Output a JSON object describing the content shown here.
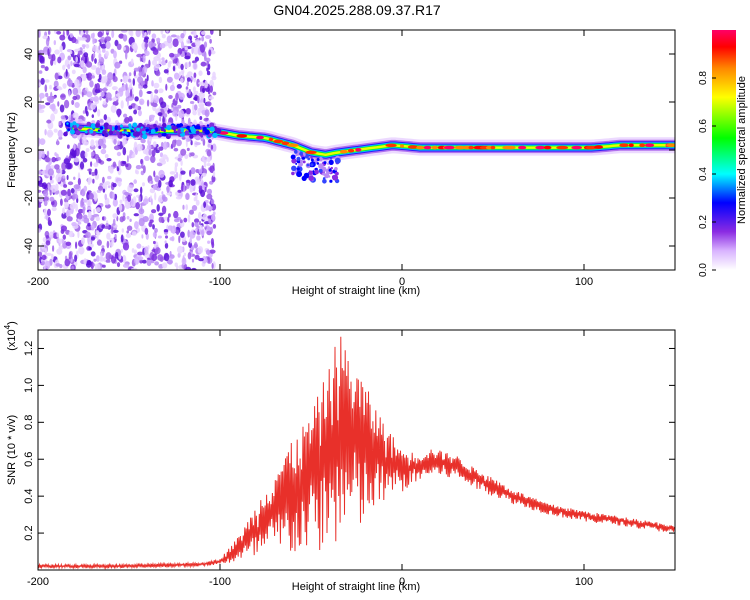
{
  "title": "GN04.2025.288.09.37.R17",
  "chart_data": [
    {
      "type": "heatmap",
      "title": "GN04.2025.288.09.37.R17",
      "xlabel": "Height of straight line (km)",
      "ylabel": "Frequency (Hz)",
      "xlim": [
        -200,
        150
      ],
      "ylim": [
        -50,
        50
      ],
      "xticks": [
        -200,
        -100,
        0,
        100
      ],
      "yticks": [
        -40,
        -20,
        0,
        20,
        40
      ],
      "ridge": {
        "x": [
          -180,
          -160,
          -140,
          -120,
          -105,
          -90,
          -75,
          -60,
          -50,
          -42,
          -35,
          -25,
          -15,
          -5,
          10,
          30,
          60,
          90,
          105,
          120,
          140,
          150
        ],
        "freq": [
          9,
          8,
          8,
          8,
          8,
          6,
          5,
          2,
          -1,
          -2,
          -1,
          0,
          1,
          2,
          1,
          1,
          1,
          1,
          1,
          2,
          2,
          2
        ]
      },
      "noise_region_x": [
        -200,
        -103
      ],
      "colorbar": {
        "label": "Normalized spectral amplitude",
        "range": [
          0,
          1
        ],
        "ticks": [
          0.0,
          0.2,
          0.4,
          0.6,
          0.8
        ],
        "tick_labels": [
          "0.0",
          "0.2",
          "0.4",
          "0.6",
          "0.8"
        ],
        "colors": [
          "#ffffff",
          "#d9b3ff",
          "#8a2be2",
          "#0000ff",
          "#00ffff",
          "#00ff00",
          "#ffff00",
          "#ff8800",
          "#ff0000",
          "#ff0066"
        ]
      }
    },
    {
      "type": "line",
      "xlabel": "Height of straight line (km)",
      "ylabel": "SNR (10 * v/v)",
      "y_multiplier": "(x10",
      "y_multiplier_exp": "4",
      "y_multiplier_close": ")",
      "xlim": [
        -200,
        150
      ],
      "ylim": [
        0,
        1.3
      ],
      "xticks": [
        -200,
        -100,
        0,
        100
      ],
      "yticks": [
        0.2,
        0.4,
        0.6,
        0.8,
        1.0,
        1.2
      ],
      "ytick_labels": [
        "0.2",
        "0.4",
        "0.6",
        "0.8",
        "1.0",
        "1.2"
      ],
      "color": "#e8302a",
      "envelope": {
        "x": [
          -200,
          -150,
          -110,
          -100,
          -90,
          -80,
          -70,
          -60,
          -50,
          -40,
          -35,
          -30,
          -20,
          -10,
          0,
          10,
          15,
          20,
          30,
          40,
          50,
          60,
          80,
          100,
          120,
          140,
          150
        ],
        "upper": [
          0.03,
          0.03,
          0.04,
          0.06,
          0.18,
          0.35,
          0.55,
          0.7,
          0.85,
          1.1,
          1.3,
          1.2,
          1.0,
          0.8,
          0.65,
          0.63,
          0.66,
          0.65,
          0.62,
          0.55,
          0.5,
          0.44,
          0.36,
          0.32,
          0.29,
          0.26,
          0.24
        ],
        "lower": [
          0.01,
          0.01,
          0.02,
          0.03,
          0.04,
          0.05,
          0.06,
          0.07,
          0.08,
          0.1,
          0.12,
          0.15,
          0.22,
          0.35,
          0.42,
          0.48,
          0.5,
          0.5,
          0.49,
          0.44,
          0.4,
          0.36,
          0.3,
          0.26,
          0.24,
          0.21,
          0.2
        ]
      }
    }
  ]
}
